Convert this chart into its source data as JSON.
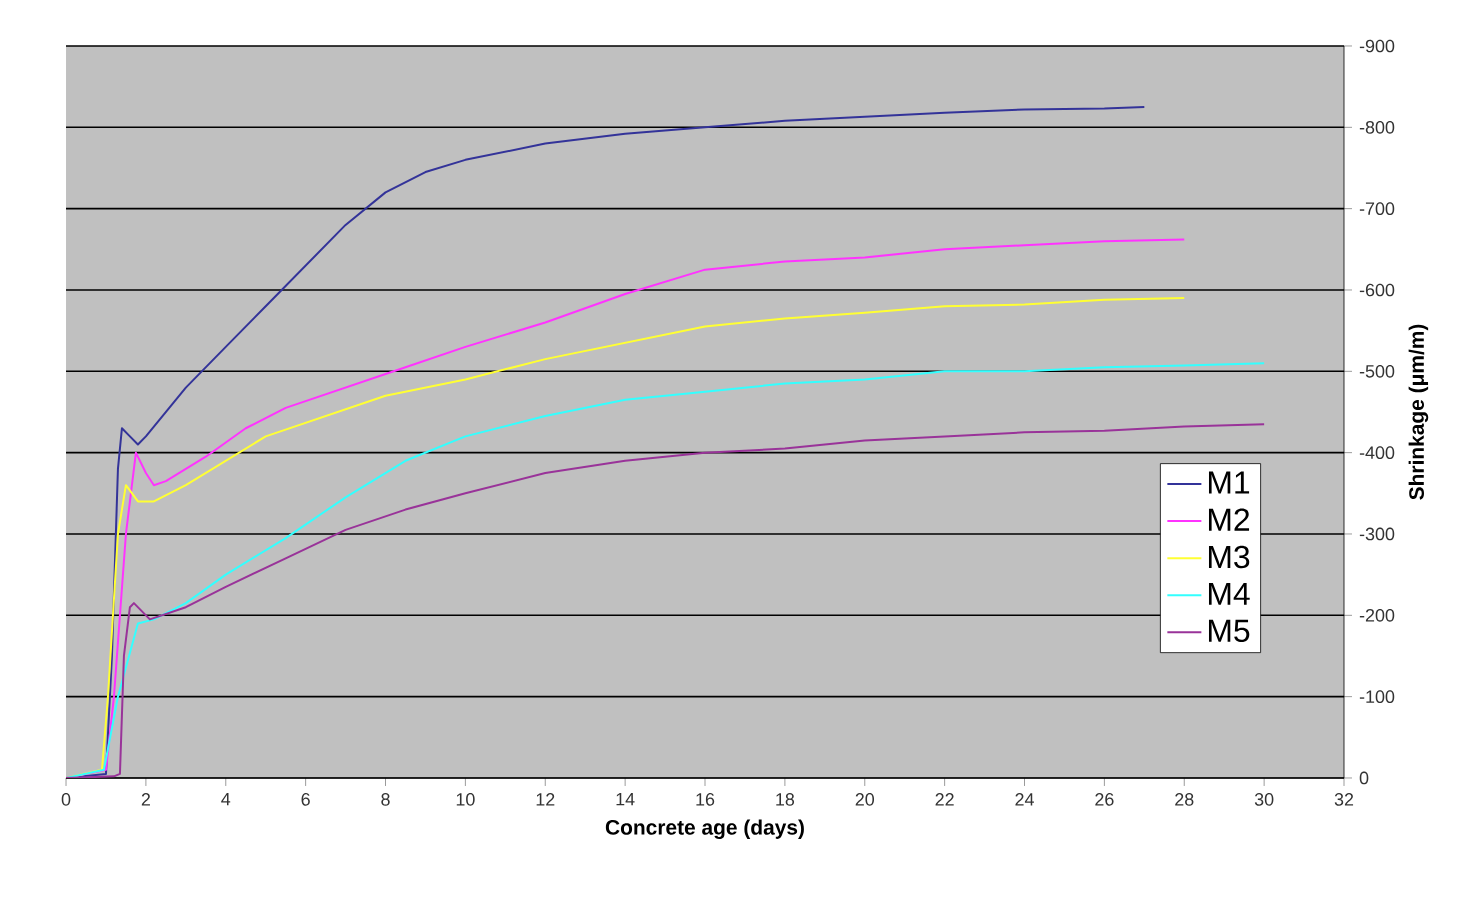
{
  "chart_data": {
    "type": "line",
    "xlabel": "Concrete age (days)",
    "ylabel": "Shrinkage (μm/m)",
    "xlim": [
      0,
      32
    ],
    "xticks": [
      0,
      2,
      4,
      6,
      8,
      10,
      12,
      14,
      16,
      18,
      20,
      22,
      24,
      26,
      28,
      30,
      32
    ],
    "ylim": [
      0,
      -900
    ],
    "yticks": [
      0,
      -100,
      -200,
      -300,
      -400,
      -500,
      -600,
      -700,
      -800,
      -900
    ],
    "grid": "y",
    "legend": "right",
    "marker": "none",
    "line_style": "solid",
    "series": [
      {
        "name": "M1",
        "color": "#333399",
        "x": [
          0,
          1.0,
          1.15,
          1.3,
          1.4,
          1.6,
          1.8,
          2.0,
          3,
          4,
          5,
          6,
          7,
          8,
          9,
          10,
          12,
          14,
          16,
          18,
          20,
          22,
          24,
          26,
          27
        ],
        "values": [
          0,
          -5,
          -150,
          -380,
          -430,
          -420,
          -410,
          -420,
          -480,
          -530,
          -580,
          -630,
          -680,
          -720,
          -745,
          -760,
          -780,
          -792,
          -800,
          -808,
          -813,
          -818,
          -822,
          -823,
          -825
        ]
      },
      {
        "name": "M2",
        "color": "#ff33ff",
        "x": [
          0,
          1.0,
          1.2,
          1.5,
          1.75,
          2.0,
          2.2,
          2.5,
          3.5,
          4.5,
          5.5,
          7,
          8.5,
          10,
          12,
          14,
          16,
          18,
          20,
          22,
          24,
          26,
          28
        ],
        "values": [
          0,
          -10,
          -100,
          -300,
          -400,
          -375,
          -360,
          -365,
          -395,
          -430,
          -455,
          -480,
          -505,
          -530,
          -560,
          -595,
          -625,
          -635,
          -640,
          -650,
          -655,
          -660,
          -662
        ]
      },
      {
        "name": "M3",
        "color": "#ffff33",
        "x": [
          0,
          0.9,
          1.05,
          1.3,
          1.5,
          1.8,
          2.2,
          3,
          4,
          5,
          6.5,
          8,
          10,
          12,
          14,
          16,
          18,
          20,
          22,
          24,
          26,
          28
        ],
        "values": [
          0,
          -10,
          -100,
          -300,
          -360,
          -340,
          -340,
          -360,
          -390,
          -420,
          -445,
          -470,
          -490,
          -515,
          -535,
          -555,
          -565,
          -572,
          -580,
          -582,
          -588,
          -590
        ]
      },
      {
        "name": "M4",
        "color": "#33ffff",
        "x": [
          0,
          0.95,
          1.3,
          1.8,
          2.2,
          3,
          4,
          5.5,
          7,
          8.5,
          10,
          12,
          14,
          16,
          18,
          20,
          22,
          24,
          26,
          28,
          30
        ],
        "values": [
          0,
          -10,
          -100,
          -190,
          -195,
          -215,
          -250,
          -295,
          -345,
          -390,
          -420,
          -445,
          -465,
          -475,
          -485,
          -490,
          -500,
          -500,
          -505,
          -507,
          -510
        ]
      },
      {
        "name": "M5",
        "color": "#993399",
        "x": [
          0,
          1.2,
          1.35,
          1.45,
          1.6,
          1.7,
          2.1,
          3,
          4,
          5.5,
          7,
          8.5,
          10,
          12,
          14,
          16,
          18,
          20,
          22,
          24,
          26,
          28,
          30
        ],
        "values": [
          0,
          -2,
          -5,
          -150,
          -210,
          -215,
          -195,
          -210,
          -235,
          -270,
          -305,
          -330,
          -350,
          -375,
          -390,
          -400,
          -405,
          -415,
          -420,
          -425,
          -427,
          -432,
          -435
        ]
      }
    ]
  }
}
